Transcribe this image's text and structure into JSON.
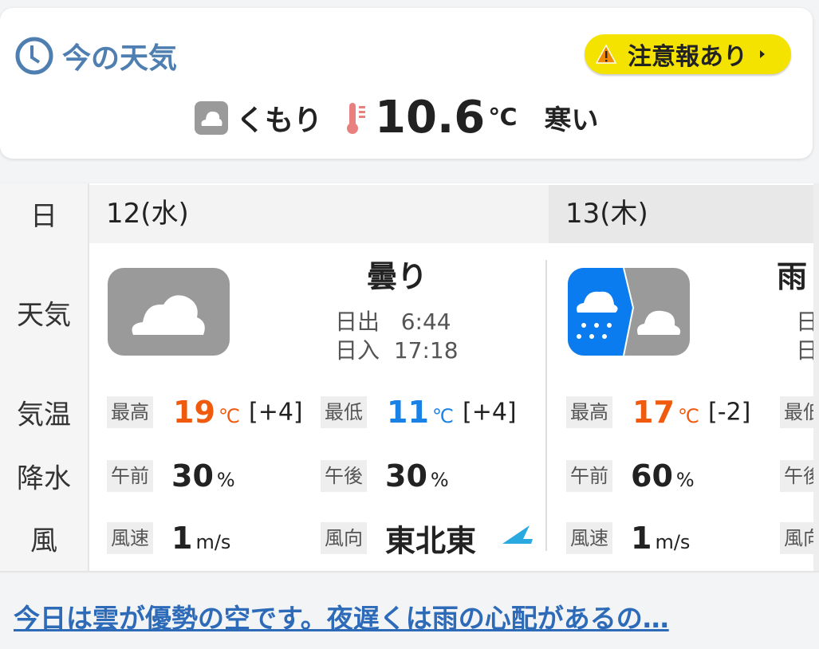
{
  "current": {
    "title": "今の天気",
    "alert_label": "注意報あり",
    "condition": "くもり",
    "temperature": "10.6",
    "unit": "℃",
    "feel": "寒い",
    "icons": {
      "title": "clock-icon",
      "alert": "warning-icon",
      "condition": "cloud-icon",
      "temp": "thermometer-icon"
    }
  },
  "table": {
    "row_labels": {
      "day": "日",
      "weather": "天気",
      "temp": "気温",
      "precip": "降水",
      "wind": "風"
    },
    "days": [
      {
        "date": "12(水)",
        "weather": "曇り",
        "icon": "cloud",
        "sunrise_label": "日出",
        "sunrise": "6:44",
        "sunset_label": "日入",
        "sunset": "17:18",
        "max_label": "最高",
        "max": "19",
        "max_diff": "[+4]",
        "min_label": "最低",
        "min": "11",
        "min_diff": "[+4]",
        "temp_unit": "℃",
        "am_label": "午前",
        "am": "30",
        "pm_label": "午後",
        "pm": "30",
        "pct": "%",
        "ws_label": "風速",
        "ws": "1",
        "ws_unit": "m/s",
        "wd_label": "風向",
        "wd": "東北東"
      },
      {
        "date": "13(木)",
        "weather": "雨",
        "icon": "rain-then-cloud",
        "sunrise_label": "日出",
        "sunset_label": "日入",
        "max_label": "最高",
        "max": "17",
        "max_diff": "[-2]",
        "min_label": "最低",
        "temp_unit": "℃",
        "am_label": "午前",
        "am": "60",
        "pm_label": "午後",
        "pct": "%",
        "ws_label": "風速",
        "ws": "1",
        "ws_unit": "m/s",
        "wd_label": "風向"
      }
    ]
  },
  "summary_link": "今日は雲が優勢の空です。夜遅くは雨の心配があるの…",
  "colors": {
    "max": "#f05a0f",
    "min": "#1a82e6",
    "alert": "#f4e300",
    "title": "#4f7fb0",
    "link": "#2d6ab8"
  }
}
